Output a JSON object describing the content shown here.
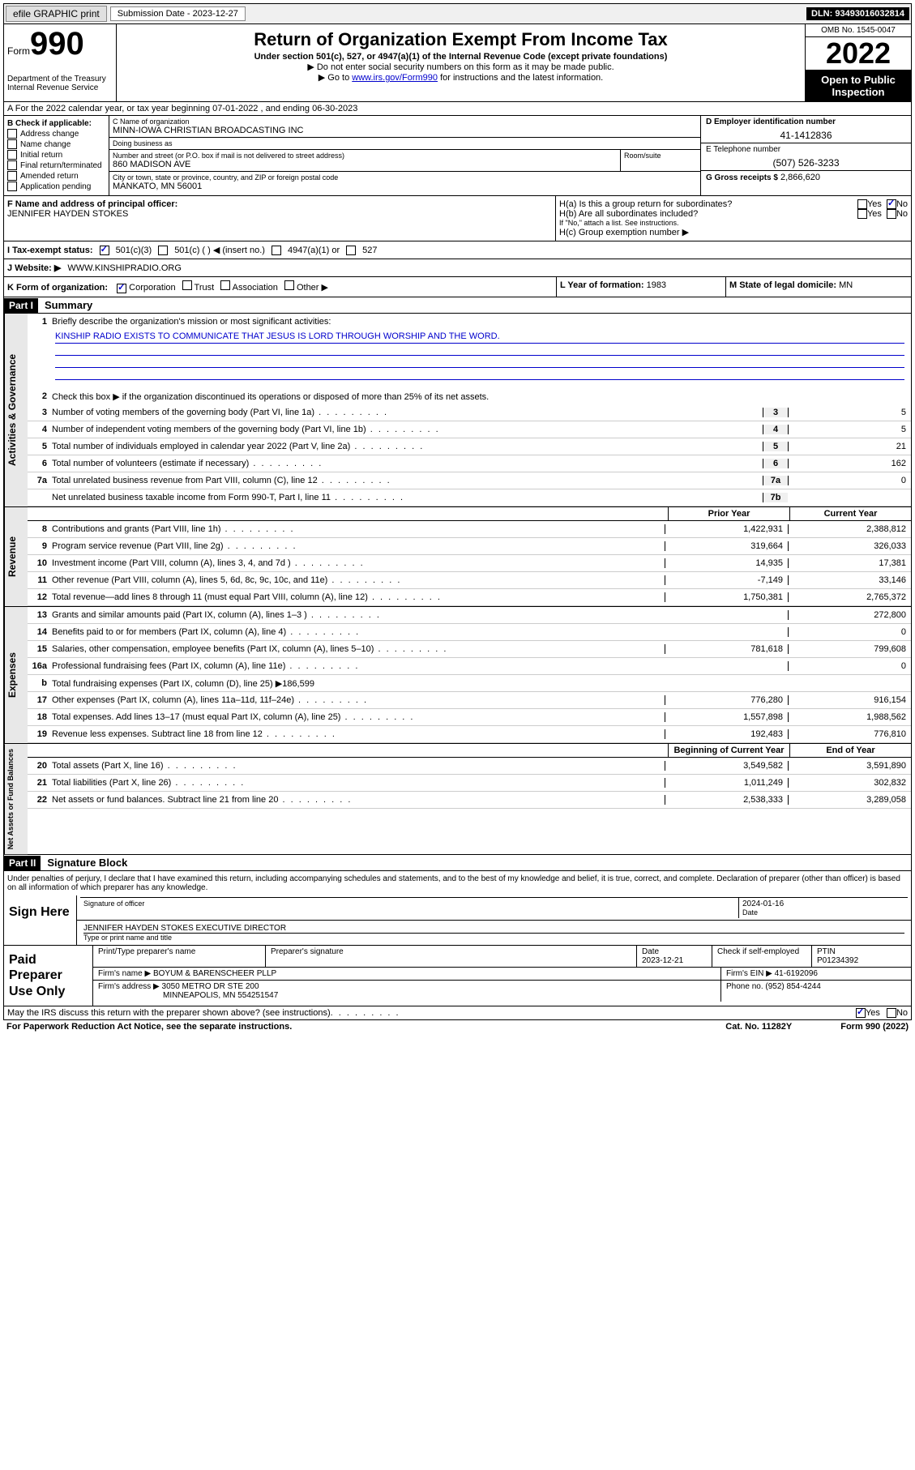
{
  "topbar": {
    "efile": "efile GRAPHIC print",
    "submission_label": "Submission Date - 2023-12-27",
    "dln": "DLN: 93493016032814"
  },
  "header": {
    "form_word": "Form",
    "form_num": "990",
    "title": "Return of Organization Exempt From Income Tax",
    "sub1": "Under section 501(c), 527, or 4947(a)(1) of the Internal Revenue Code (except private foundations)",
    "sub2": "▶ Do not enter social security numbers on this form as it may be made public.",
    "sub3_pre": "▶ Go to ",
    "sub3_link": "www.irs.gov/Form990",
    "sub3_post": " for instructions and the latest information.",
    "dept": "Department of the Treasury",
    "irs": "Internal Revenue Service",
    "omb": "OMB No. 1545-0047",
    "year": "2022",
    "inspect": "Open to Public Inspection"
  },
  "row_a": "A For the 2022 calendar year, or tax year beginning 07-01-2022   , and ending 06-30-2023",
  "col_b": {
    "label": "B Check if applicable:",
    "items": [
      "Address change",
      "Name change",
      "Initial return",
      "Final return/terminated",
      "Amended return",
      "Application pending"
    ]
  },
  "col_c": {
    "name_label": "C Name of organization",
    "name": "MINN-IOWA CHRISTIAN BROADCASTING INC",
    "dba_label": "Doing business as",
    "dba": "",
    "street_label": "Number and street (or P.O. box if mail is not delivered to street address)",
    "street": "860 MADISON AVE",
    "room_label": "Room/suite",
    "city_label": "City or town, state or province, country, and ZIP or foreign postal code",
    "city": "MANKATO, MN  56001"
  },
  "col_de": {
    "d_label": "D Employer identification number",
    "d_val": "41-1412836",
    "e_label": "E Telephone number",
    "e_val": "(507) 526-3233",
    "g_label": "G Gross receipts $",
    "g_val": "2,866,620"
  },
  "fh": {
    "f_label": "F Name and address of principal officer:",
    "f_name": "JENNIFER HAYDEN STOKES",
    "ha": "H(a)  Is this a group return for subordinates?",
    "hb": "H(b)  Are all subordinates included?",
    "hb_note": "If \"No,\" attach a list. See instructions.",
    "hc": "H(c)  Group exemption number ▶",
    "yes": "Yes",
    "no": "No"
  },
  "i": {
    "label": "I   Tax-exempt status:",
    "o1": "501(c)(3)",
    "o2": "501(c) (  ) ◀ (insert no.)",
    "o3": "4947(a)(1) or",
    "o4": "527"
  },
  "j": {
    "label": "J   Website: ▶",
    "val": "WWW.KINSHIPRADIO.ORG"
  },
  "klm": {
    "k_label": "K Form of organization:",
    "k_opts": [
      "Corporation",
      "Trust",
      "Association",
      "Other ▶"
    ],
    "l_label": "L Year of formation:",
    "l_val": "1983",
    "m_label": "M State of legal domicile:",
    "m_val": "MN"
  },
  "part1": {
    "hdr": "Part I",
    "title": "Summary",
    "q1": "Briefly describe the organization's mission or most significant activities:",
    "mission": "KINSHIP RADIO EXISTS TO COMMUNICATE THAT JESUS IS LORD THROUGH WORSHIP AND THE WORD.",
    "q2": "Check this box ▶        if the organization discontinued its operations or disposed of more than 25% of its net assets.",
    "lines_gov": [
      {
        "n": "3",
        "d": "Number of voting members of the governing body (Part VI, line 1a)",
        "b": "3",
        "v": "5"
      },
      {
        "n": "4",
        "d": "Number of independent voting members of the governing body (Part VI, line 1b)",
        "b": "4",
        "v": "5"
      },
      {
        "n": "5",
        "d": "Total number of individuals employed in calendar year 2022 (Part V, line 2a)",
        "b": "5",
        "v": "21"
      },
      {
        "n": "6",
        "d": "Total number of volunteers (estimate if necessary)",
        "b": "6",
        "v": "162"
      },
      {
        "n": "7a",
        "d": "Total unrelated business revenue from Part VIII, column (C), line 12",
        "b": "7a",
        "v": "0"
      },
      {
        "n": "",
        "d": "Net unrelated business taxable income from Form 990-T, Part I, line 11",
        "b": "7b",
        "v": ""
      }
    ],
    "hdr_prior": "Prior Year",
    "hdr_curr": "Current Year",
    "rev": [
      {
        "n": "8",
        "d": "Contributions and grants (Part VIII, line 1h)",
        "p": "1,422,931",
        "c": "2,388,812"
      },
      {
        "n": "9",
        "d": "Program service revenue (Part VIII, line 2g)",
        "p": "319,664",
        "c": "326,033"
      },
      {
        "n": "10",
        "d": "Investment income (Part VIII, column (A), lines 3, 4, and 7d )",
        "p": "14,935",
        "c": "17,381"
      },
      {
        "n": "11",
        "d": "Other revenue (Part VIII, column (A), lines 5, 6d, 8c, 9c, 10c, and 11e)",
        "p": "-7,149",
        "c": "33,146"
      },
      {
        "n": "12",
        "d": "Total revenue—add lines 8 through 11 (must equal Part VIII, column (A), line 12)",
        "p": "1,750,381",
        "c": "2,765,372"
      }
    ],
    "exp": [
      {
        "n": "13",
        "d": "Grants and similar amounts paid (Part IX, column (A), lines 1–3 )",
        "p": "",
        "c": "272,800"
      },
      {
        "n": "14",
        "d": "Benefits paid to or for members (Part IX, column (A), line 4)",
        "p": "",
        "c": "0"
      },
      {
        "n": "15",
        "d": "Salaries, other compensation, employee benefits (Part IX, column (A), lines 5–10)",
        "p": "781,618",
        "c": "799,608"
      },
      {
        "n": "16a",
        "d": "Professional fundraising fees (Part IX, column (A), line 11e)",
        "p": "",
        "c": "0"
      },
      {
        "n": "b",
        "d": "Total fundraising expenses (Part IX, column (D), line 25) ▶186,599",
        "p": "__SHADE__",
        "c": "__SHADE__"
      },
      {
        "n": "17",
        "d": "Other expenses (Part IX, column (A), lines 11a–11d, 11f–24e)",
        "p": "776,280",
        "c": "916,154"
      },
      {
        "n": "18",
        "d": "Total expenses. Add lines 13–17 (must equal Part IX, column (A), line 25)",
        "p": "1,557,898",
        "c": "1,988,562"
      },
      {
        "n": "19",
        "d": "Revenue less expenses. Subtract line 18 from line 12",
        "p": "192,483",
        "c": "776,810"
      }
    ],
    "hdr_begin": "Beginning of Current Year",
    "hdr_end": "End of Year",
    "net": [
      {
        "n": "20",
        "d": "Total assets (Part X, line 16)",
        "p": "3,549,582",
        "c": "3,591,890"
      },
      {
        "n": "21",
        "d": "Total liabilities (Part X, line 26)",
        "p": "1,011,249",
        "c": "302,832"
      },
      {
        "n": "22",
        "d": "Net assets or fund balances. Subtract line 21 from line 20",
        "p": "2,538,333",
        "c": "3,289,058"
      }
    ],
    "vtabs": {
      "gov": "Activities & Governance",
      "rev": "Revenue",
      "exp": "Expenses",
      "net": "Net Assets or Fund Balances"
    }
  },
  "part2": {
    "hdr": "Part II",
    "title": "Signature Block",
    "decl": "Under penalties of perjury, I declare that I have examined this return, including accompanying schedules and statements, and to the best of my knowledge and belief, it is true, correct, and complete. Declaration of preparer (other than officer) is based on all information of which preparer has any knowledge.",
    "sign_here": "Sign Here",
    "sig_officer": "Signature of officer",
    "sig_date_label": "Date",
    "sig_date": "2024-01-16",
    "sig_name": "JENNIFER HAYDEN STOKES  EXECUTIVE DIRECTOR",
    "sig_name_label": "Type or print name and title",
    "paid": "Paid Preparer Use Only",
    "p_name_label": "Print/Type preparer's name",
    "p_sig_label": "Preparer's signature",
    "p_date_label": "Date",
    "p_date": "2023-12-21",
    "p_check": "Check        if self-employed",
    "p_ptin_label": "PTIN",
    "p_ptin": "P01234392",
    "firm_name_label": "Firm's name     ▶",
    "firm_name": "BOYUM & BARENSCHEER PLLP",
    "firm_ein_label": "Firm's EIN ▶",
    "firm_ein": "41-6192096",
    "firm_addr_label": "Firm's address ▶",
    "firm_addr1": "3050 METRO DR STE 200",
    "firm_addr2": "MINNEAPOLIS, MN  554251547",
    "firm_phone_label": "Phone no.",
    "firm_phone": "(952) 854-4244",
    "discuss": "May the IRS discuss this return with the preparer shown above? (see instructions)",
    "footer_left": "For Paperwork Reduction Act Notice, see the separate instructions.",
    "footer_mid": "Cat. No. 11282Y",
    "footer_right": "Form 990 (2022)"
  }
}
